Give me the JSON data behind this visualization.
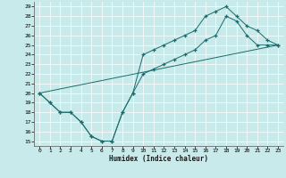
{
  "title": "",
  "xlabel": "Humidex (Indice chaleur)",
  "ylabel": "",
  "bg_color": "#c8eaea",
  "line_color": "#1a6b6b",
  "grid_color": "#aad4d4",
  "xlim": [
    -0.5,
    23.5
  ],
  "ylim": [
    14.5,
    29.5
  ],
  "xticks": [
    0,
    1,
    2,
    3,
    4,
    5,
    6,
    7,
    8,
    9,
    10,
    11,
    12,
    13,
    14,
    15,
    16,
    17,
    18,
    19,
    20,
    21,
    22,
    23
  ],
  "yticks": [
    15,
    16,
    17,
    18,
    19,
    20,
    21,
    22,
    23,
    24,
    25,
    26,
    27,
    28,
    29
  ],
  "line1_x": [
    0,
    1,
    2,
    3,
    4,
    5,
    6,
    7,
    8,
    9,
    10,
    11,
    12,
    13,
    14,
    15,
    16,
    17,
    18,
    19,
    20,
    21,
    22,
    23
  ],
  "line1_y": [
    20,
    19,
    18,
    18,
    17,
    15.5,
    15,
    15,
    18,
    20,
    24,
    24.5,
    25,
    25.5,
    26,
    26.5,
    28,
    28.5,
    29,
    28,
    27,
    26.5,
    25.5,
    25
  ],
  "line2_x": [
    0,
    1,
    2,
    3,
    4,
    5,
    6,
    7,
    8,
    9,
    10,
    11,
    12,
    13,
    14,
    15,
    16,
    17,
    18,
    19,
    20,
    21,
    22,
    23
  ],
  "line2_y": [
    20,
    19,
    18,
    18,
    17,
    15.5,
    15,
    15,
    18,
    20,
    22,
    22.5,
    23,
    23.5,
    24,
    24.5,
    25.5,
    26,
    28,
    27.5,
    26,
    25,
    25,
    25
  ],
  "line3_x": [
    0,
    23
  ],
  "line3_y": [
    20,
    25
  ]
}
